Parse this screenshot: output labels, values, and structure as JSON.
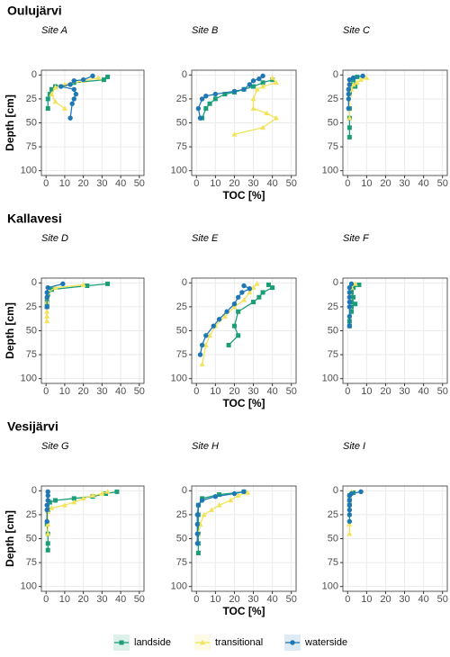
{
  "chart_data": [
    {
      "type": "line",
      "group_title": "Oulujärvi",
      "title": "Site A",
      "y_label": "Depth [cm]",
      "xlim": [
        -2.5,
        52.5
      ],
      "ylim": [
        -5,
        105
      ],
      "y_reversed": true,
      "xticks": [
        0,
        10,
        20,
        30,
        40,
        50
      ],
      "yticks": [
        0,
        25,
        50,
        75,
        100
      ],
      "grid": true,
      "series": [
        {
          "name": "landside",
          "color": "#1b9e77",
          "marker": "square",
          "x": [
            33,
            31,
            15,
            5,
            3,
            2,
            1,
            1
          ],
          "values": [
            2,
            5,
            8,
            12,
            15,
            20,
            25,
            35
          ]
        },
        {
          "name": "transitional",
          "color": "#f2e35a",
          "marker": "triangle",
          "x": [
            28,
            20,
            10,
            5,
            3,
            5,
            10
          ],
          "values": [
            3,
            6,
            10,
            13,
            20,
            28,
            35
          ]
        },
        {
          "name": "waterside",
          "color": "#1f78b4",
          "marker": "circle",
          "x": [
            25,
            20,
            15,
            13,
            8,
            15,
            16,
            15,
            14,
            13
          ],
          "values": [
            1,
            5,
            6,
            10,
            12,
            15,
            20,
            25,
            30,
            45
          ]
        }
      ]
    },
    {
      "type": "line",
      "title": "Site B",
      "x_label": "TOC [%]",
      "xlim": [
        -2.5,
        52.5
      ],
      "ylim": [
        -5,
        105
      ],
      "y_reversed": true,
      "xticks": [
        0,
        10,
        20,
        30,
        40,
        50
      ],
      "yticks": [
        0,
        25,
        50,
        75,
        100
      ],
      "grid": true,
      "series": [
        {
          "name": "landside",
          "color": "#1b9e77",
          "marker": "square",
          "x": [
            40,
            35,
            30,
            25,
            20,
            15,
            10,
            7,
            5,
            3
          ],
          "values": [
            5,
            8,
            12,
            15,
            18,
            20,
            25,
            30,
            35,
            45
          ]
        },
        {
          "name": "transitional",
          "color": "#f2e35a",
          "marker": "triangle",
          "x": [
            40,
            42,
            35,
            32,
            30,
            30,
            37,
            42,
            35,
            20
          ],
          "values": [
            3,
            8,
            12,
            15,
            25,
            35,
            40,
            45,
            55,
            62
          ]
        },
        {
          "name": "waterside",
          "color": "#1f78b4",
          "marker": "circle",
          "x": [
            35,
            33,
            30,
            28,
            25,
            20,
            10,
            5,
            3,
            1,
            2
          ],
          "values": [
            1,
            4,
            6,
            10,
            15,
            17,
            20,
            22,
            25,
            35,
            45
          ]
        }
      ]
    },
    {
      "type": "line",
      "title": "Site C",
      "xlim": [
        -2.5,
        52.5
      ],
      "ylim": [
        -5,
        105
      ],
      "y_reversed": true,
      "xticks": [
        0,
        10,
        20,
        30,
        40,
        50
      ],
      "yticks": [
        0,
        25,
        50,
        75,
        100
      ],
      "grid": true,
      "series": [
        {
          "name": "landside",
          "color": "#1b9e77",
          "marker": "square",
          "x": [
            5,
            3,
            3,
            4,
            1,
            1,
            1,
            1,
            1,
            1
          ],
          "values": [
            2,
            5,
            10,
            12,
            15,
            20,
            35,
            45,
            55,
            65
          ]
        },
        {
          "name": "transitional",
          "color": "#f2e35a",
          "marker": "triangle",
          "x": [
            10,
            7,
            5,
            3,
            2,
            1,
            1
          ],
          "values": [
            3,
            5,
            8,
            10,
            15,
            20,
            45
          ]
        },
        {
          "name": "waterside",
          "color": "#1f78b4",
          "marker": "circle",
          "x": [
            8,
            3,
            1,
            1,
            0.5,
            0.5,
            0.5,
            0.5
          ],
          "values": [
            1,
            3,
            5,
            10,
            15,
            20,
            25,
            35
          ]
        }
      ]
    },
    {
      "type": "line",
      "group_title": "Kallavesi",
      "title": "Site D",
      "y_label": "Depth [cm]",
      "xlim": [
        -2.5,
        52.5
      ],
      "ylim": [
        -5,
        105
      ],
      "y_reversed": true,
      "xticks": [
        0,
        10,
        20,
        30,
        40,
        50
      ],
      "yticks": [
        0,
        25,
        50,
        75,
        100
      ],
      "grid": true,
      "series": [
        {
          "name": "landside",
          "color": "#1b9e77",
          "marker": "square",
          "x": [
            33,
            22,
            3,
            1,
            0.5,
            0.5,
            0.5
          ],
          "values": [
            1,
            3,
            7,
            12,
            17,
            22,
            25
          ]
        },
        {
          "name": "transitional",
          "color": "#f2e35a",
          "marker": "triangle",
          "x": [
            20,
            5,
            1,
            0.5,
            0.5,
            0.5,
            0.5,
            0.5
          ],
          "values": [
            2,
            5,
            10,
            15,
            20,
            30,
            35,
            40
          ]
        },
        {
          "name": "waterside",
          "color": "#1f78b4",
          "marker": "circle",
          "x": [
            9,
            1,
            0.5,
            0.5,
            0.5
          ],
          "values": [
            1,
            5,
            10,
            15,
            25
          ]
        }
      ]
    },
    {
      "type": "line",
      "title": "Site E",
      "x_label": "TOC [%]",
      "xlim": [
        -2.5,
        52.5
      ],
      "ylim": [
        -5,
        105
      ],
      "y_reversed": true,
      "xticks": [
        0,
        10,
        20,
        30,
        40,
        50
      ],
      "yticks": [
        0,
        25,
        50,
        75,
        100
      ],
      "grid": true,
      "series": [
        {
          "name": "landside",
          "color": "#1b9e77",
          "marker": "square",
          "x": [
            38,
            40,
            35,
            33,
            30,
            22,
            20,
            22,
            17
          ],
          "values": [
            2,
            5,
            10,
            15,
            20,
            30,
            45,
            55,
            65
          ]
        },
        {
          "name": "transitional",
          "color": "#f2e35a",
          "marker": "triangle",
          "x": [
            32,
            30,
            28,
            25,
            20,
            15,
            10,
            7,
            5,
            3
          ],
          "values": [
            1,
            5,
            10,
            18,
            25,
            35,
            45,
            55,
            65,
            85
          ]
        },
        {
          "name": "waterside",
          "color": "#1f78b4",
          "marker": "circle",
          "x": [
            25,
            28,
            24,
            22,
            20,
            16,
            12,
            9,
            5,
            3,
            2
          ],
          "values": [
            3,
            6,
            10,
            15,
            22,
            30,
            38,
            45,
            55,
            65,
            75
          ]
        }
      ]
    },
    {
      "type": "line",
      "title": "Site F",
      "xlim": [
        -2.5,
        52.5
      ],
      "ylim": [
        -5,
        105
      ],
      "y_reversed": true,
      "xticks": [
        0,
        10,
        20,
        30,
        40,
        50
      ],
      "yticks": [
        0,
        25,
        50,
        75,
        100
      ],
      "grid": true,
      "series": [
        {
          "name": "landside",
          "color": "#1b9e77",
          "marker": "square",
          "x": [
            6,
            3,
            2,
            3,
            2,
            4,
            2,
            2,
            1,
            1
          ],
          "values": [
            2,
            5,
            10,
            15,
            20,
            22,
            25,
            30,
            40,
            45
          ]
        },
        {
          "name": "transitional",
          "color": "#f2e35a",
          "marker": "triangle",
          "x": [
            4,
            2,
            1,
            1,
            1,
            1
          ],
          "values": [
            1,
            5,
            10,
            15,
            25,
            35
          ]
        },
        {
          "name": "waterside",
          "color": "#1f78b4",
          "marker": "circle",
          "x": [
            2,
            1,
            1,
            1,
            1,
            1,
            1,
            1
          ],
          "values": [
            1,
            5,
            10,
            15,
            20,
            25,
            35,
            45
          ]
        }
      ]
    },
    {
      "type": "line",
      "group_title": "Vesijärvi",
      "title": "Site G",
      "y_label": "Depth [cm]",
      "xlim": [
        -2.5,
        52.5
      ],
      "ylim": [
        -5,
        105
      ],
      "y_reversed": true,
      "xticks": [
        0,
        10,
        20,
        30,
        40,
        50
      ],
      "yticks": [
        0,
        25,
        50,
        75,
        100
      ],
      "grid": true,
      "series": [
        {
          "name": "landside",
          "color": "#1b9e77",
          "marker": "square",
          "x": [
            38,
            32,
            25,
            15,
            5,
            2,
            1,
            0.5,
            1,
            1,
            1
          ],
          "values": [
            1,
            3,
            6,
            8,
            10,
            12,
            20,
            35,
            45,
            55,
            62
          ]
        },
        {
          "name": "transitional",
          "color": "#f2e35a",
          "marker": "triangle",
          "x": [
            33,
            30,
            25,
            20,
            15,
            10,
            3,
            1,
            1,
            1
          ],
          "values": [
            1,
            3,
            5,
            8,
            12,
            15,
            18,
            22,
            35,
            45
          ]
        },
        {
          "name": "waterside",
          "color": "#1f78b4",
          "marker": "circle",
          "x": [
            1,
            1,
            1,
            0.5,
            0.5,
            0.5
          ],
          "values": [
            1,
            5,
            10,
            15,
            20,
            32
          ]
        }
      ]
    },
    {
      "type": "line",
      "title": "Site H",
      "x_label": "TOC [%]",
      "xlim": [
        -2.5,
        52.5
      ],
      "ylim": [
        -5,
        105
      ],
      "y_reversed": true,
      "xticks": [
        0,
        10,
        20,
        30,
        40,
        50
      ],
      "yticks": [
        0,
        25,
        50,
        75,
        100
      ],
      "grid": true,
      "series": [
        {
          "name": "landside",
          "color": "#1b9e77",
          "marker": "square",
          "x": [
            25,
            12,
            3,
            1,
            1,
            1,
            1,
            1,
            1
          ],
          "values": [
            1,
            4,
            8,
            15,
            25,
            35,
            45,
            55,
            65
          ]
        },
        {
          "name": "transitional",
          "color": "#f2e35a",
          "marker": "triangle",
          "x": [
            27,
            22,
            18,
            12,
            8,
            4,
            2,
            1
          ],
          "values": [
            2,
            5,
            10,
            15,
            20,
            25,
            35,
            45
          ]
        },
        {
          "name": "waterside",
          "color": "#1f78b4",
          "marker": "circle",
          "x": [
            25,
            20,
            10,
            3,
            1,
            0.5,
            0.5,
            0.5,
            0.5
          ],
          "values": [
            1,
            3,
            6,
            10,
            15,
            25,
            35,
            45,
            55
          ]
        }
      ]
    },
    {
      "type": "line",
      "title": "Site I",
      "xlim": [
        -2.5,
        52.5
      ],
      "ylim": [
        -5,
        105
      ],
      "y_reversed": true,
      "xticks": [
        0,
        10,
        20,
        30,
        40,
        50
      ],
      "yticks": [
        0,
        25,
        50,
        75,
        100
      ],
      "grid": true,
      "series": [
        {
          "name": "landside",
          "color": "#1b9e77",
          "marker": "square",
          "x": [
            3,
            1,
            1,
            1
          ],
          "values": [
            2,
            5,
            10,
            15
          ]
        },
        {
          "name": "transitional",
          "color": "#f2e35a",
          "marker": "triangle",
          "x": [
            2,
            1,
            1,
            1,
            1,
            1,
            1
          ],
          "values": [
            1,
            5,
            10,
            15,
            25,
            35,
            45
          ]
        },
        {
          "name": "waterside",
          "color": "#1f78b4",
          "marker": "circle",
          "x": [
            7,
            2,
            1,
            1,
            1,
            1,
            1,
            1
          ],
          "values": [
            1,
            3,
            5,
            10,
            15,
            20,
            25,
            32
          ]
        }
      ]
    }
  ]
}
